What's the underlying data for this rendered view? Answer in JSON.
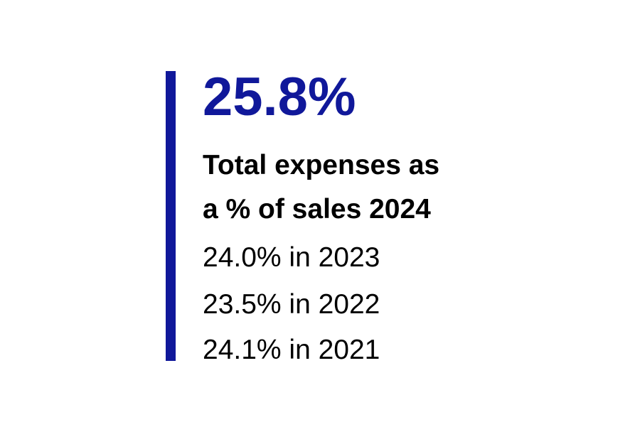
{
  "kpi": {
    "value": "25.8%",
    "label_lines": [
      "Total expenses as",
      "a % of sales 2024"
    ],
    "history": [
      "24.0% in 2023",
      "23.5% in 2022",
      "24.1% in 2021"
    ]
  }
}
